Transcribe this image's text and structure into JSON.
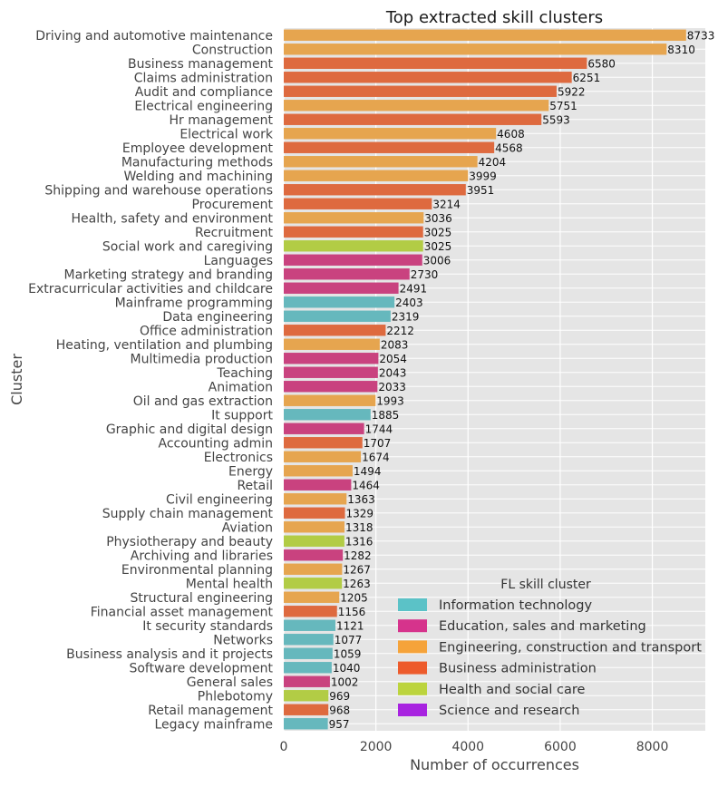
{
  "chart_data": {
    "type": "bar",
    "orientation": "horizontal",
    "title": "Top extracted skill clusters",
    "xlabel": "Number of occurrences",
    "ylabel": "Cluster",
    "xlim": [
      0,
      9150
    ],
    "xticks": [
      0,
      2000,
      4000,
      6000,
      8000
    ],
    "grid": true,
    "legend": {
      "title": "FL skill cluster",
      "placement": "bottom-right",
      "entries": [
        {
          "name": "Information technology",
          "color": "#5bc2c7"
        },
        {
          "name": "Education, sales and marketing",
          "color": "#d6338c"
        },
        {
          "name": "Engineering, construction and transport",
          "color": "#f5a33a"
        },
        {
          "name": "Business administration",
          "color": "#ed5b2c"
        },
        {
          "name": "Health and social care",
          "color": "#bcd43d"
        },
        {
          "name": "Science and research",
          "color": "#a823e0"
        }
      ]
    },
    "bars": [
      {
        "label": "Driving and automotive maintenance",
        "value": 8733,
        "group": "Engineering, construction and transport",
        "color": "#e6a54f"
      },
      {
        "label": "Construction",
        "value": 8310,
        "group": "Engineering, construction and transport",
        "color": "#e6a54f"
      },
      {
        "label": "Business management",
        "value": 6580,
        "group": "Business administration",
        "color": "#de6a3f"
      },
      {
        "label": "Claims administration",
        "value": 6251,
        "group": "Business administration",
        "color": "#de6a3f"
      },
      {
        "label": "Audit and compliance",
        "value": 5922,
        "group": "Business administration",
        "color": "#de6a3f"
      },
      {
        "label": "Electrical engineering",
        "value": 5751,
        "group": "Engineering, construction and transport",
        "color": "#e6a54f"
      },
      {
        "label": "Hr management",
        "value": 5593,
        "group": "Business administration",
        "color": "#de6a3f"
      },
      {
        "label": "Electrical work",
        "value": 4608,
        "group": "Engineering, construction and transport",
        "color": "#e6a54f"
      },
      {
        "label": "Employee development",
        "value": 4568,
        "group": "Business administration",
        "color": "#de6a3f"
      },
      {
        "label": "Manufacturing methods",
        "value": 4204,
        "group": "Engineering, construction and transport",
        "color": "#e6a54f"
      },
      {
        "label": "Welding and machining",
        "value": 3999,
        "group": "Engineering, construction and transport",
        "color": "#e6a54f"
      },
      {
        "label": "Shipping and warehouse operations",
        "value": 3951,
        "group": "Business administration",
        "color": "#de6a3f"
      },
      {
        "label": "Procurement",
        "value": 3214,
        "group": "Business administration",
        "color": "#de6a3f"
      },
      {
        "label": "Health, safety and environment",
        "value": 3036,
        "group": "Engineering, construction and transport",
        "color": "#e6a54f"
      },
      {
        "label": "Recruitment",
        "value": 3025,
        "group": "Business administration",
        "color": "#de6a3f"
      },
      {
        "label": "Social work and caregiving",
        "value": 3025,
        "group": "Health and social care",
        "color": "#b2cc45"
      },
      {
        "label": "Languages",
        "value": 3006,
        "group": "Education, sales and marketing",
        "color": "#c9427f"
      },
      {
        "label": "Marketing strategy and branding",
        "value": 2730,
        "group": "Education, sales and marketing",
        "color": "#c9427f"
      },
      {
        "label": "Extracurricular activities and childcare",
        "value": 2491,
        "group": "Education, sales and marketing",
        "color": "#c9427f"
      },
      {
        "label": "Mainframe programming",
        "value": 2403,
        "group": "Information technology",
        "color": "#66b8bd"
      },
      {
        "label": "Data engineering",
        "value": 2319,
        "group": "Information technology",
        "color": "#66b8bd"
      },
      {
        "label": "Office administration",
        "value": 2212,
        "group": "Business administration",
        "color": "#de6a3f"
      },
      {
        "label": "Heating, ventilation and plumbing",
        "value": 2083,
        "group": "Engineering, construction and transport",
        "color": "#e6a54f"
      },
      {
        "label": "Multimedia production",
        "value": 2054,
        "group": "Education, sales and marketing",
        "color": "#c9427f"
      },
      {
        "label": "Teaching",
        "value": 2043,
        "group": "Education, sales and marketing",
        "color": "#c9427f"
      },
      {
        "label": "Animation",
        "value": 2033,
        "group": "Education, sales and marketing",
        "color": "#c9427f"
      },
      {
        "label": "Oil and gas extraction",
        "value": 1993,
        "group": "Engineering, construction and transport",
        "color": "#e6a54f"
      },
      {
        "label": "It support",
        "value": 1885,
        "group": "Information technology",
        "color": "#66b8bd"
      },
      {
        "label": "Graphic and digital design",
        "value": 1744,
        "group": "Education, sales and marketing",
        "color": "#c9427f"
      },
      {
        "label": "Accounting admin",
        "value": 1707,
        "group": "Business administration",
        "color": "#de6a3f"
      },
      {
        "label": "Electronics",
        "value": 1674,
        "group": "Engineering, construction and transport",
        "color": "#e6a54f"
      },
      {
        "label": "Energy",
        "value": 1494,
        "group": "Engineering, construction and transport",
        "color": "#e6a54f"
      },
      {
        "label": "Retail",
        "value": 1464,
        "group": "Education, sales and marketing",
        "color": "#c9427f"
      },
      {
        "label": "Civil engineering",
        "value": 1363,
        "group": "Engineering, construction and transport",
        "color": "#e6a54f"
      },
      {
        "label": "Supply chain management",
        "value": 1329,
        "group": "Business administration",
        "color": "#de6a3f"
      },
      {
        "label": "Aviation",
        "value": 1318,
        "group": "Engineering, construction and transport",
        "color": "#e6a54f"
      },
      {
        "label": "Physiotherapy and beauty",
        "value": 1316,
        "group": "Health and social care",
        "color": "#b2cc45"
      },
      {
        "label": "Archiving and libraries",
        "value": 1282,
        "group": "Education, sales and marketing",
        "color": "#c9427f"
      },
      {
        "label": "Environmental planning",
        "value": 1267,
        "group": "Engineering, construction and transport",
        "color": "#e6a54f"
      },
      {
        "label": "Mental health",
        "value": 1263,
        "group": "Health and social care",
        "color": "#b2cc45"
      },
      {
        "label": "Structural engineering",
        "value": 1205,
        "group": "Engineering, construction and transport",
        "color": "#e6a54f"
      },
      {
        "label": "Financial asset management",
        "value": 1156,
        "group": "Business administration",
        "color": "#de6a3f"
      },
      {
        "label": "It security standards",
        "value": 1121,
        "group": "Information technology",
        "color": "#66b8bd"
      },
      {
        "label": "Networks",
        "value": 1077,
        "group": "Information technology",
        "color": "#66b8bd"
      },
      {
        "label": "Business analysis and it projects",
        "value": 1059,
        "group": "Information technology",
        "color": "#66b8bd"
      },
      {
        "label": "Software development",
        "value": 1040,
        "group": "Information technology",
        "color": "#66b8bd"
      },
      {
        "label": "General sales",
        "value": 1002,
        "group": "Education, sales and marketing",
        "color": "#c9427f"
      },
      {
        "label": "Phlebotomy",
        "value": 969,
        "group": "Health and social care",
        "color": "#b2cc45"
      },
      {
        "label": "Retail management",
        "value": 968,
        "group": "Business administration",
        "color": "#de6a3f"
      },
      {
        "label": "Legacy mainframe",
        "value": 957,
        "group": "Information technology",
        "color": "#66b8bd"
      }
    ]
  }
}
